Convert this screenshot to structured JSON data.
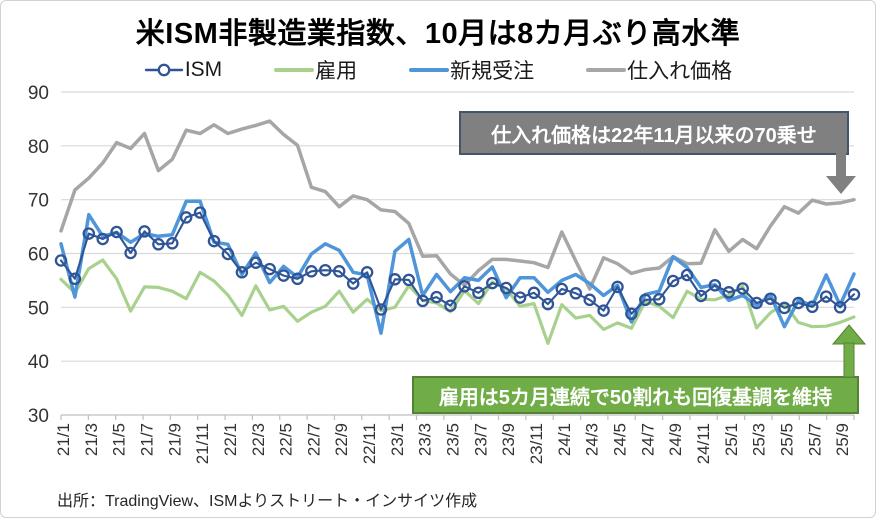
{
  "title": "米ISM非製造業指数、10月は8カ月ぶり高水準",
  "legend": [
    {
      "label": "ISM",
      "color": "#2F5597",
      "marker": "circle"
    },
    {
      "label": "雇用",
      "color": "#A9D18E",
      "marker": "line"
    },
    {
      "label": "新規受注",
      "color": "#4E95D9",
      "marker": "line"
    },
    {
      "label": "仕入れ価格",
      "color": "#A6A6A6",
      "marker": "line"
    }
  ],
  "annotations": {
    "prices": {
      "text": "仕入れ価格は22年11月以来の70乗せ",
      "fill": "#808080",
      "border": "#44546A"
    },
    "employment": {
      "text": "雇用は5カ月連続で50割れも回復基調を維持",
      "fill": "#70AD47",
      "border": "#548235"
    }
  },
  "source": "出所：TradingView、ISMよりストリート・インサイツ作成",
  "chart_data": {
    "type": "line",
    "title": "米ISM非製造業指数、10月は8カ月ぶり高水準",
    "xlabel": "",
    "ylabel": "",
    "ylim": [
      30,
      90
    ],
    "yticks": [
      30,
      40,
      50,
      60,
      70,
      80,
      90
    ],
    "grid": true,
    "legend_position": "top",
    "x": [
      "21/1",
      "21/2",
      "21/3",
      "21/4",
      "21/5",
      "21/6",
      "21/7",
      "21/8",
      "21/9",
      "21/10",
      "21/11",
      "21/12",
      "22/1",
      "22/2",
      "22/3",
      "22/4",
      "22/5",
      "22/6",
      "22/7",
      "22/8",
      "22/9",
      "22/10",
      "22/11",
      "22/12",
      "23/1",
      "23/2",
      "23/3",
      "23/4",
      "23/5",
      "23/6",
      "23/7",
      "23/8",
      "23/9",
      "23/10",
      "23/11",
      "23/12",
      "24/1",
      "24/2",
      "24/3",
      "24/4",
      "24/5",
      "24/6",
      "24/7",
      "24/8",
      "24/9",
      "24/10",
      "24/11",
      "24/12",
      "25/1",
      "25/2",
      "25/3",
      "25/4",
      "25/5",
      "25/6",
      "25/7",
      "25/8",
      "25/9",
      "25/10"
    ],
    "x_tick_labels": [
      "21/1",
      "21/3",
      "21/5",
      "21/7",
      "21/9",
      "21/11",
      "22/1",
      "22/3",
      "22/5",
      "22/7",
      "22/9",
      "22/11",
      "23/1",
      "23/3",
      "23/5",
      "23/7",
      "23/9",
      "23/11",
      "24/1",
      "24/3",
      "24/5",
      "24/7",
      "24/9",
      "24/11",
      "25/1",
      "25/3",
      "25/5",
      "25/7",
      "25/9"
    ],
    "series": [
      {
        "key": "prices",
        "name": "仕入れ価格",
        "color": "#A6A6A6",
        "width": 3.5,
        "marker": "none",
        "values": [
          64.2,
          71.8,
          74.0,
          76.8,
          80.6,
          79.5,
          82.3,
          75.4,
          77.5,
          82.9,
          82.3,
          83.9,
          82.3,
          83.1,
          83.8,
          84.6,
          82.1,
          80.1,
          72.3,
          71.5,
          68.7,
          70.7,
          70.0,
          68.1,
          67.8,
          65.6,
          59.5,
          59.6,
          56.2,
          54.1,
          56.8,
          58.9,
          58.9,
          58.6,
          58.3,
          57.4,
          64.0,
          58.6,
          53.4,
          59.2,
          58.1,
          56.3,
          57.0,
          57.3,
          59.4,
          58.1,
          58.2,
          64.4,
          60.4,
          62.6,
          60.9,
          65.1,
          68.7,
          67.5,
          69.9,
          69.2,
          69.4,
          70.0
        ]
      },
      {
        "key": "employment",
        "name": "雇用",
        "color": "#A9D18E",
        "width": 3.2,
        "marker": "none",
        "values": [
          55.2,
          52.7,
          57.2,
          58.8,
          55.3,
          49.3,
          53.8,
          53.7,
          53.0,
          51.6,
          56.5,
          54.9,
          52.3,
          48.5,
          54.0,
          49.5,
          50.2,
          47.4,
          49.1,
          50.2,
          53.0,
          49.1,
          51.5,
          49.4,
          50.0,
          54.0,
          51.3,
          50.8,
          49.2,
          53.1,
          50.7,
          54.7,
          53.4,
          50.2,
          50.7,
          43.3,
          50.5,
          48.0,
          48.5,
          45.9,
          47.1,
          46.1,
          51.1,
          50.2,
          48.1,
          53.0,
          51.5,
          51.4,
          52.3,
          53.9,
          46.2,
          49.0,
          50.7,
          47.2,
          46.4,
          46.5,
          47.2,
          48.2
        ]
      },
      {
        "key": "new-orders",
        "name": "新規受注",
        "color": "#4E95D9",
        "width": 3.5,
        "marker": "none",
        "values": [
          61.8,
          51.9,
          67.2,
          63.2,
          63.9,
          62.1,
          63.7,
          63.2,
          63.5,
          69.7,
          69.7,
          62.1,
          61.7,
          56.1,
          60.1,
          54.6,
          57.6,
          55.6,
          59.9,
          61.8,
          60.6,
          56.5,
          56.0,
          45.2,
          60.4,
          62.6,
          52.2,
          56.1,
          52.9,
          55.5,
          55.0,
          57.5,
          51.8,
          55.5,
          55.5,
          52.8,
          55.0,
          56.1,
          54.4,
          52.2,
          54.1,
          47.3,
          52.4,
          53.0,
          59.4,
          57.4,
          53.7,
          54.2,
          51.3,
          52.2,
          50.4,
          52.3,
          46.4,
          51.3,
          50.3,
          56.0,
          50.4,
          56.2
        ]
      },
      {
        "key": "ism",
        "name": "ISM",
        "color": "#2F5597",
        "width": 2.1,
        "marker": "circle",
        "values": [
          58.7,
          55.3,
          63.7,
          62.7,
          64.0,
          60.1,
          64.1,
          61.7,
          61.9,
          66.7,
          67.6,
          62.3,
          59.9,
          56.5,
          58.3,
          57.1,
          55.9,
          55.3,
          56.7,
          56.9,
          56.7,
          54.4,
          56.5,
          49.6,
          55.2,
          55.1,
          51.2,
          51.9,
          50.3,
          53.9,
          52.7,
          54.5,
          53.6,
          51.8,
          52.7,
          50.6,
          53.4,
          52.6,
          51.4,
          49.4,
          53.8,
          48.8,
          51.4,
          51.5,
          54.9,
          56.0,
          52.1,
          54.1,
          52.8,
          53.5,
          50.8,
          51.6,
          49.9,
          50.8,
          50.1,
          52.0,
          50.0,
          52.4
        ]
      }
    ]
  }
}
